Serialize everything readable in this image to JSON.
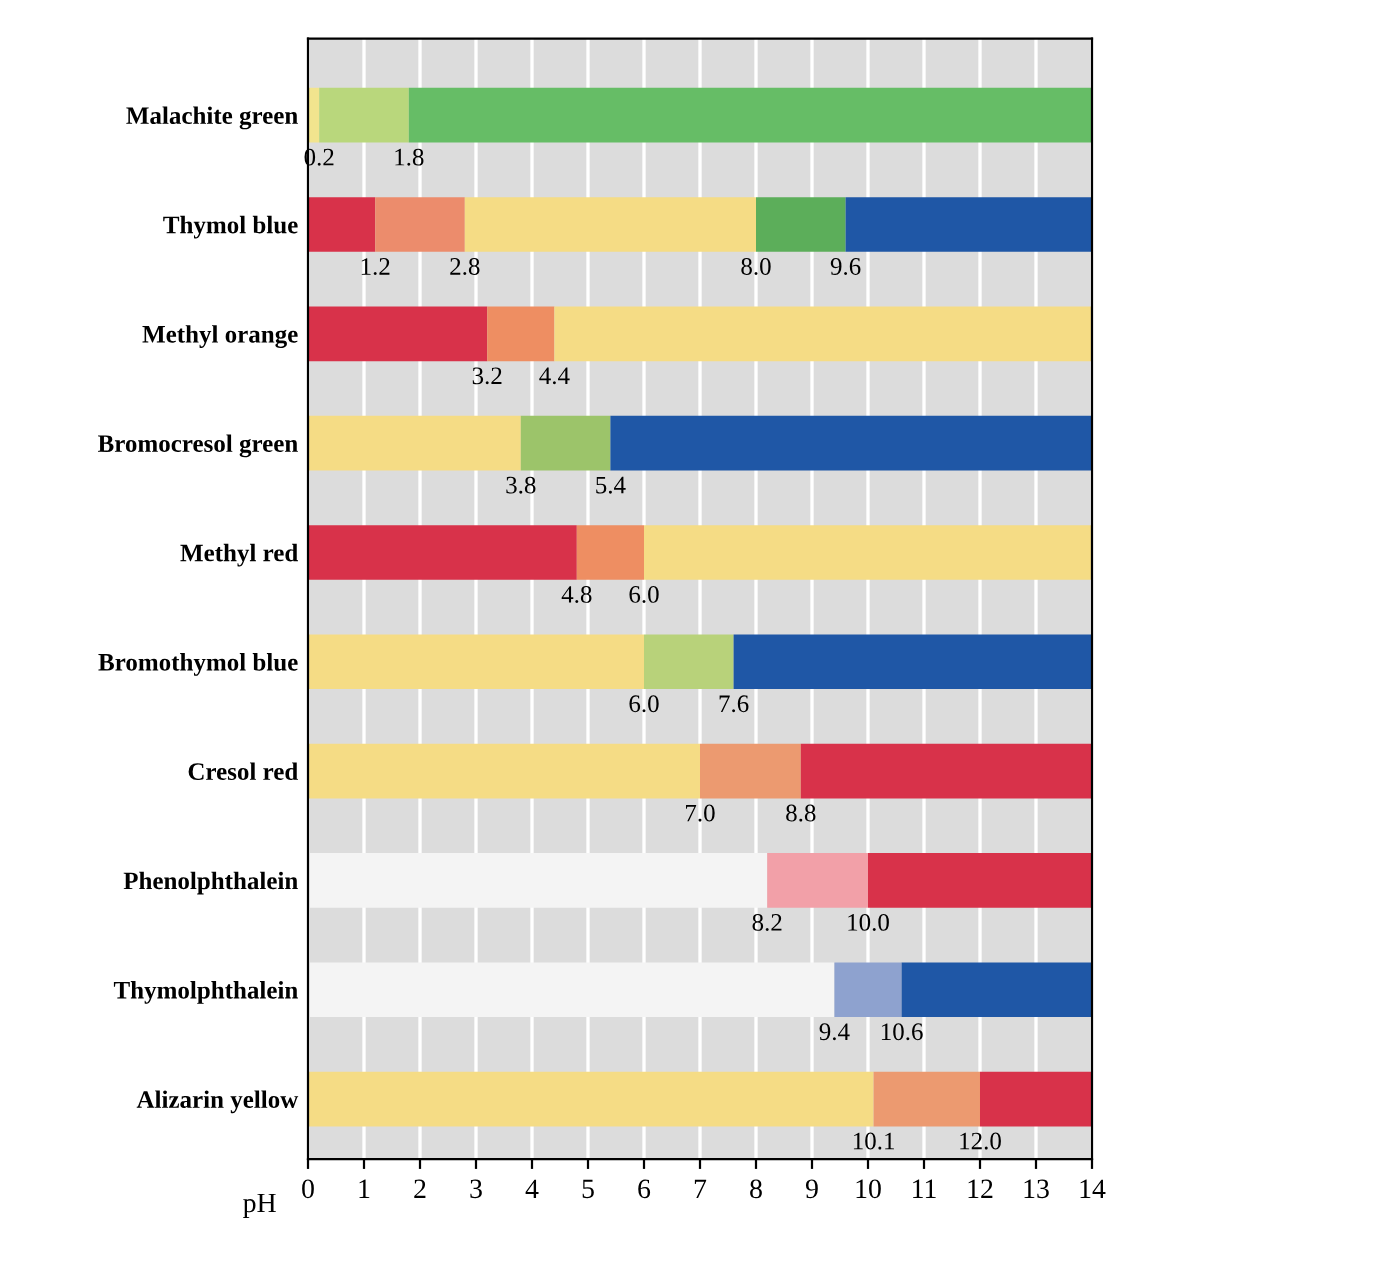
{
  "chart_data": {
    "type": "bar",
    "orientation": "horizontal",
    "stacked": true,
    "categories": [
      "Malachite green",
      "Thymol blue",
      "Methyl orange",
      "Bromocresol green",
      "Methyl red",
      "Bromothymol blue",
      "Cresol red",
      "Phenolphthalein",
      "Thymolphthalein",
      "Alizarin yellow"
    ],
    "series": [
      {
        "colors": [
          "#f2e48e",
          "#d8324a",
          "#d8324a",
          "#f5dc85",
          "#d8324a",
          "#f5dc85",
          "#f5dc85",
          "#f4f4f4",
          "#f4f4f4",
          "#f5dc85"
        ],
        "values": [
          0.2,
          1.2,
          3.2,
          3.8,
          4.8,
          6.0,
          7.0,
          8.2,
          9.4,
          10.1
        ]
      },
      {
        "colors": [
          "#b9d77c",
          "#ec8c6c",
          "#ee8e62",
          "#9cc46a",
          "#ee8e62",
          "#b8d27a",
          "#ec9a70",
          "#f2a0a8",
          "#8ea2cf",
          "#ec9a70"
        ],
        "values": [
          1.6,
          1.6,
          1.2,
          1.6,
          1.2,
          1.6,
          1.8,
          1.8,
          1.2,
          1.9
        ]
      },
      {
        "colors": [
          "#66bd66",
          "#f5dc85",
          "#f5dc85",
          "#1f57a6",
          "#f5dc85",
          "#1f57a6",
          "#d8324a",
          "#d8324a",
          "#1f57a6",
          "#d8324a"
        ],
        "values": [
          12.2,
          5.2,
          9.6,
          8.6,
          8.0,
          6.4,
          5.2,
          4.0,
          3.4,
          2.0
        ]
      },
      {
        "colors": [
          "#66bd66",
          "#5cae5a",
          "#ffffff",
          "#ffffff",
          "#ffffff",
          "#ffffff",
          "#ffffff",
          "#ffffff",
          "#ffffff",
          "#ffffff"
        ],
        "values": [
          null,
          1.6,
          null,
          null,
          null,
          null,
          null,
          null,
          null,
          null
        ]
      },
      {
        "colors": [
          "#66bd66",
          "#1f57a6",
          "#ffffff",
          "#ffffff",
          "#ffffff",
          "#ffffff",
          "#ffffff",
          "#ffffff",
          "#ffffff",
          "#ffffff"
        ],
        "values": [
          null,
          4.4,
          null,
          null,
          null,
          null,
          null,
          null,
          null,
          null
        ]
      }
    ],
    "xlabel": "pH",
    "xlim": [
      0,
      14
    ],
    "xticks": [
      0,
      1,
      2,
      3,
      4,
      5,
      6,
      7,
      8,
      9,
      10,
      11,
      12,
      13,
      14
    ],
    "grid": "x",
    "legend": false,
    "annotations": [
      {
        "text": "0.2",
        "x": 0.2,
        "y": "Malachite green"
      },
      {
        "text": "1.8",
        "x": 1.8,
        "y": "Malachite green"
      },
      {
        "text": "1.2",
        "x": 1.2,
        "y": "Thymol blue"
      },
      {
        "text": "2.8",
        "x": 2.8,
        "y": "Thymol blue"
      },
      {
        "text": "8.0",
        "x": 8.0,
        "y": "Thymol blue"
      },
      {
        "text": "9.6",
        "x": 9.6,
        "y": "Thymol blue"
      },
      {
        "text": "3.2",
        "x": 3.2,
        "y": "Methyl orange"
      },
      {
        "text": "4.4",
        "x": 4.4,
        "y": "Methyl orange"
      },
      {
        "text": "3.8",
        "x": 3.8,
        "y": "Bromocresol green"
      },
      {
        "text": "5.4",
        "x": 5.4,
        "y": "Bromocresol green"
      },
      {
        "text": "4.8",
        "x": 4.8,
        "y": "Methyl red"
      },
      {
        "text": "6.0",
        "x": 6.0,
        "y": "Methyl red"
      },
      {
        "text": "6.0",
        "x": 6.0,
        "y": "Bromothymol blue"
      },
      {
        "text": "7.6",
        "x": 7.6,
        "y": "Bromothymol blue"
      },
      {
        "text": "7.0",
        "x": 7.0,
        "y": "Cresol red"
      },
      {
        "text": "8.8",
        "x": 8.8,
        "y": "Cresol red"
      },
      {
        "text": "8.2",
        "x": 8.2,
        "y": "Phenolphthalein"
      },
      {
        "text": "10.0",
        "x": 10.0,
        "y": "Phenolphthalein"
      },
      {
        "text": "9.4",
        "x": 9.4,
        "y": "Thymolphthalein"
      },
      {
        "text": "10.6",
        "x": 10.6,
        "y": "Thymolphthalein"
      },
      {
        "text": "10.1",
        "x": 10.1,
        "y": "Alizarin yellow"
      },
      {
        "text": "12.0",
        "x": 12.0,
        "y": "Alizarin yellow"
      }
    ]
  }
}
